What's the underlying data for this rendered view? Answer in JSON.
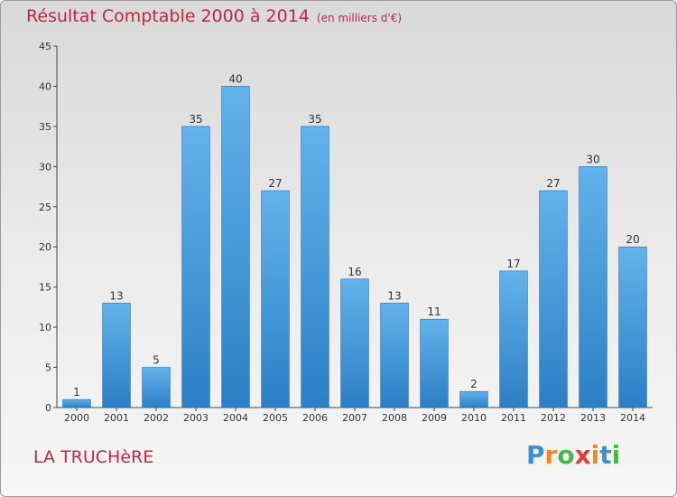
{
  "header": {
    "title": "Résultat Comptable 2000 à 2014",
    "subtitle": "(en milliers d'€)"
  },
  "commune": "LA TRUCHèRE",
  "logo": {
    "letters": [
      "P",
      "r",
      "o",
      "x",
      "i",
      "t",
      "i"
    ],
    "colors": [
      "#3a8fd8",
      "#f08a1c",
      "#49b845",
      "#e23c3c",
      "#f08a1c",
      "#3a8fd8",
      "#49b845"
    ]
  },
  "colors": {
    "bar_top": "#62b2ec",
    "bar_bottom": "#2c7fc4",
    "bar_edge": "#1f6fb3",
    "title": "#c0264a"
  },
  "chart_data": {
    "type": "bar",
    "title": "Résultat Comptable 2000 à 2014",
    "subtitle": "(en milliers d'€)",
    "xlabel": "",
    "ylabel": "",
    "categories": [
      "2000",
      "2001",
      "2002",
      "2003",
      "2004",
      "2005",
      "2006",
      "2007",
      "2008",
      "2009",
      "2010",
      "2011",
      "2012",
      "2013",
      "2014"
    ],
    "values": [
      1,
      13,
      5,
      35,
      40,
      27,
      35,
      16,
      13,
      11,
      2,
      17,
      27,
      30,
      20
    ],
    "ylim": [
      0,
      45
    ],
    "yticks": [
      0,
      5,
      10,
      15,
      20,
      25,
      30,
      35,
      40,
      45
    ],
    "grid": false,
    "legend": "none"
  }
}
